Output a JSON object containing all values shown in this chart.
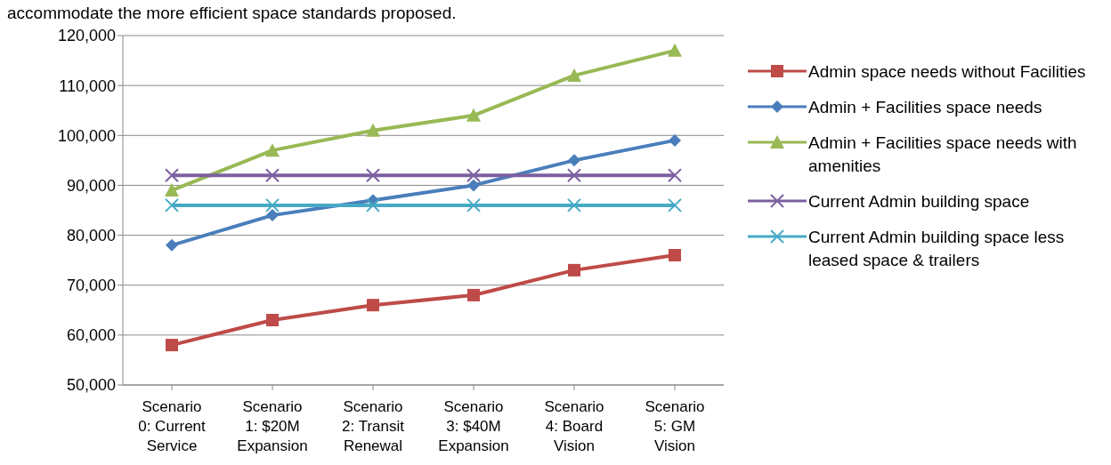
{
  "chart_data": {
    "type": "line",
    "annotations": [
      "accommodate the more efficient space standards proposed."
    ],
    "categories": [
      "Scenario 0: Current Service",
      "Scenario 1: $20M Expansion",
      "Scenario 2: Transit Renewal",
      "Scenario 3: $40M Expansion",
      "Scenario 4: Board Vision",
      "Scenario 5: GM Vision"
    ],
    "series": [
      {
        "name": "Admin space needs without Facilities",
        "color": "#be4b48",
        "marker": "square",
        "values": [
          58000,
          63000,
          66000,
          68000,
          73000,
          76000
        ]
      },
      {
        "name": "Admin + Facilities space needs",
        "color": "#4a7ebb",
        "marker": "diamond",
        "values": [
          78000,
          84000,
          87000,
          90000,
          95000,
          99000
        ]
      },
      {
        "name": "Admin + Facilities space needs with amenities",
        "color": "#98b954",
        "marker": "triangle",
        "values": [
          89000,
          97000,
          101000,
          104000,
          112000,
          117000
        ]
      },
      {
        "name": "Current Admin building space",
        "color": "#7d60a0",
        "marker": "cross",
        "values": [
          92000,
          92000,
          92000,
          92000,
          92000,
          92000
        ]
      },
      {
        "name": "Current Admin building space less leased space & trailers",
        "color": "#46aac5",
        "marker": "cross",
        "values": [
          86000,
          86000,
          86000,
          86000,
          86000,
          86000
        ]
      }
    ],
    "ylim": [
      50000,
      120000
    ],
    "yticks": [
      {
        "value": 50000,
        "label": "50,000"
      },
      {
        "value": 60000,
        "label": "60,000"
      },
      {
        "value": 70000,
        "label": "70,000"
      },
      {
        "value": 80000,
        "label": "80,000"
      },
      {
        "value": 90000,
        "label": "90,000"
      },
      {
        "value": 100000,
        "label": "100,000"
      },
      {
        "value": 110000,
        "label": "110,000"
      },
      {
        "value": 120000,
        "label": "120,000"
      }
    ],
    "grid": "y",
    "legend": "right",
    "line_style": "solid"
  }
}
